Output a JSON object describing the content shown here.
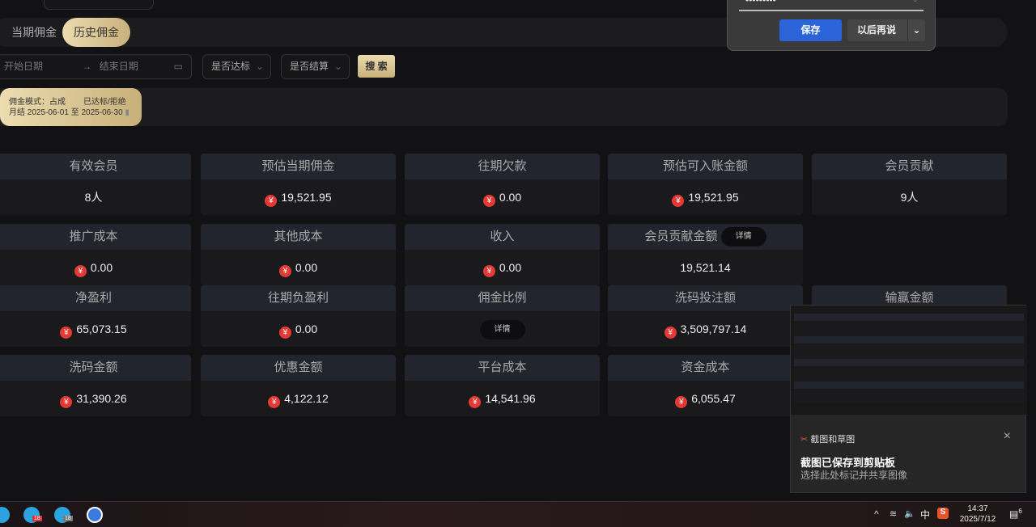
{
  "tabs": [
    {
      "label": "当期佣金"
    },
    {
      "label": "历史佣金",
      "active": true
    }
  ],
  "filters": {
    "start_placeholder": "开始日期",
    "arrow": "→",
    "end_placeholder": "结束日期",
    "reached": "是否达标",
    "settled": "是否结算",
    "search": "搜 索"
  },
  "info": {
    "mode": "佣金模式：占成",
    "status": "已达标/拒绝",
    "period": "月结 2025-06-01 至 2025-06-30"
  },
  "cards": [
    {
      "title": "有效会员",
      "value": "8人"
    },
    {
      "title": "预估当期佣金",
      "value": "19,521.95",
      "yen": true
    },
    {
      "title": "往期欠款",
      "value": "0.00",
      "yen": true
    },
    {
      "title": "预估可入账金额",
      "value": "19,521.95",
      "yen": true
    },
    {
      "title": "会员贡献",
      "value": "9人"
    },
    {
      "title": "推广成本",
      "value": "0.00",
      "yen": true
    },
    {
      "title": "其他成本",
      "value": "0.00",
      "yen": true
    },
    {
      "title": "收入",
      "value": "0.00",
      "yen": true
    },
    {
      "title": "会员贡献金额",
      "value": "19,521.14",
      "detail": "详情"
    },
    {
      "title": "净盈利",
      "value": "65,073.15",
      "yen": true
    },
    {
      "title": "往期负盈利",
      "value": "0.00",
      "yen": true
    },
    {
      "title": "佣金比例",
      "detail": "详情"
    },
    {
      "title": "洗码投注额",
      "value": "3,509,797.14",
      "yen": true
    },
    {
      "title": "输赢金额"
    },
    {
      "title": "洗码金额",
      "value": "31,390.26",
      "yen": true
    },
    {
      "title": "优惠金额",
      "value": "4,122.12",
      "yen": true
    },
    {
      "title": "平台成本",
      "value": "14,541.96",
      "yen": true
    },
    {
      "title": "资金成本",
      "value": "6,055.47",
      "yen": true
    }
  ],
  "yen_symbol": "¥",
  "password_prompt": {
    "masked": "•••••••••",
    "save": "保存",
    "later": "以后再说"
  },
  "notification": {
    "app": "截图和草图",
    "title": "截图已保存到剪贴板",
    "body": "选择此处标记并共享图像",
    "close": "×"
  },
  "taskbar": {
    "ime": "中",
    "time": "14:37",
    "date": "2025/7/12",
    "notif_count": "6",
    "badge1": "18",
    "badge2": "18"
  }
}
